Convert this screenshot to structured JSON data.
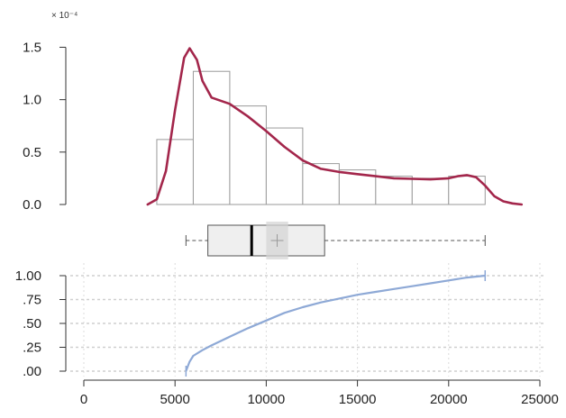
{
  "chart_data": [
    {
      "type": "histogram_density",
      "title": "",
      "xlabel": "",
      "ylabel": "",
      "y_multiplier_label": "× 10⁻⁴",
      "y_ticks": [
        {
          "value": 0.0,
          "label": "0.0"
        },
        {
          "value": 0.5,
          "label": "0.5"
        },
        {
          "value": 1.0,
          "label": "1.0"
        },
        {
          "value": 1.5,
          "label": "1.5"
        }
      ],
      "ylim": [
        0,
        1.65
      ],
      "bins": [
        {
          "x0": 4000,
          "x1": 6000,
          "height": 0.62
        },
        {
          "x0": 6000,
          "x1": 8000,
          "height": 1.27
        },
        {
          "x0": 8000,
          "x1": 10000,
          "height": 0.94
        },
        {
          "x0": 10000,
          "x1": 12000,
          "height": 0.73
        },
        {
          "x0": 12000,
          "x1": 14000,
          "height": 0.39
        },
        {
          "x0": 14000,
          "x1": 16000,
          "height": 0.33
        },
        {
          "x0": 16000,
          "x1": 18000,
          "height": 0.27
        },
        {
          "x0": 18000,
          "x1": 20000,
          "height": 0.25
        },
        {
          "x0": 20000,
          "x1": 22000,
          "height": 0.27
        }
      ],
      "density": {
        "x": [
          3500,
          4000,
          4500,
          5000,
          5500,
          5800,
          6200,
          6500,
          7000,
          7500,
          8000,
          8500,
          9000,
          10000,
          11000,
          12000,
          13000,
          14000,
          15000,
          16000,
          17000,
          18000,
          19000,
          20000,
          20500,
          21000,
          21500,
          22000,
          22500,
          23000,
          23500,
          24000
        ],
        "y": [
          0.0,
          0.05,
          0.32,
          0.9,
          1.4,
          1.49,
          1.38,
          1.18,
          1.02,
          0.99,
          0.96,
          0.9,
          0.84,
          0.7,
          0.55,
          0.42,
          0.34,
          0.31,
          0.29,
          0.27,
          0.25,
          0.245,
          0.24,
          0.25,
          0.27,
          0.28,
          0.26,
          0.18,
          0.08,
          0.03,
          0.01,
          0.0
        ]
      },
      "density_color": "#a3264b",
      "bar_edge_color": "#9a9a9a"
    },
    {
      "type": "boxplot",
      "min": 5600,
      "q1": 6800,
      "median": 9200,
      "q3": 13200,
      "max": 22000,
      "mean": 10600,
      "mean_band": [
        10000,
        11200
      ],
      "fill_color": "#efefef"
    },
    {
      "type": "line",
      "title": "",
      "xlabel": "",
      "ylabel": "",
      "xlim": [
        0,
        25000
      ],
      "x_ticks": [
        {
          "value": 0,
          "label": "0"
        },
        {
          "value": 5000,
          "label": "5000"
        },
        {
          "value": 10000,
          "label": "10000"
        },
        {
          "value": 15000,
          "label": "15000"
        },
        {
          "value": 20000,
          "label": "20000"
        },
        {
          "value": 25000,
          "label": "25000"
        }
      ],
      "ylim": [
        0,
        1
      ],
      "y_ticks": [
        {
          "value": 0.0,
          "label": ".00"
        },
        {
          "value": 0.25,
          "label": ".25"
        },
        {
          "value": 0.5,
          "label": ".50"
        },
        {
          "value": 0.75,
          "label": ".75"
        },
        {
          "value": 1.0,
          "label": "1.00"
        }
      ],
      "grid": true,
      "series": [
        {
          "x": [
            5600,
            5800,
            6000,
            6500,
            7000,
            8000,
            9000,
            10000,
            11000,
            12000,
            13000,
            14000,
            15000,
            16000,
            17000,
            18000,
            19000,
            20000,
            21000,
            22000
          ],
          "y": [
            0.0,
            0.1,
            0.16,
            0.22,
            0.27,
            0.36,
            0.45,
            0.53,
            0.61,
            0.67,
            0.72,
            0.76,
            0.8,
            0.83,
            0.86,
            0.89,
            0.92,
            0.95,
            0.98,
            1.0
          ]
        }
      ],
      "line_color": "#8ea9d6"
    }
  ]
}
